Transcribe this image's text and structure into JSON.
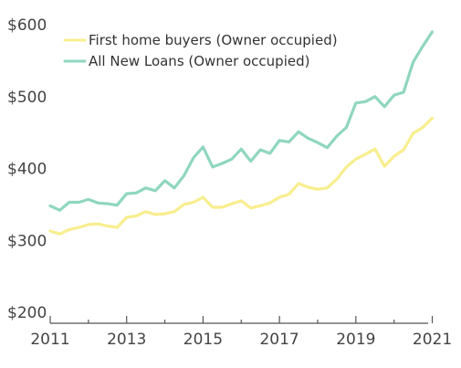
{
  "chart_data": {
    "type": "line",
    "title": "",
    "xlabel": "",
    "ylabel": "",
    "xlim": [
      2011,
      2021.25
    ],
    "ylim": [
      200,
      600
    ],
    "x_ticks": [
      2011,
      2013,
      2015,
      2017,
      2019,
      2021
    ],
    "x_tick_labels": [
      "2011",
      "2013",
      "2015",
      "2017",
      "2019",
      "2021"
    ],
    "y_ticks": [
      200,
      300,
      400,
      500,
      600
    ],
    "y_tick_labels": [
      "$200",
      "$300",
      "$400",
      "$500",
      "$600"
    ],
    "grid": false,
    "legend_position": "top-left",
    "x": [
      2011.0,
      2011.25,
      2011.5,
      2011.75,
      2012.0,
      2012.25,
      2012.5,
      2012.75,
      2013.0,
      2013.25,
      2013.5,
      2013.75,
      2014.0,
      2014.25,
      2014.5,
      2014.75,
      2015.0,
      2015.25,
      2015.5,
      2015.75,
      2016.0,
      2016.25,
      2016.5,
      2016.75,
      2017.0,
      2017.25,
      2017.5,
      2017.75,
      2018.0,
      2018.25,
      2018.5,
      2018.75,
      2019.0,
      2019.25,
      2019.5,
      2019.75,
      2020.0,
      2020.25,
      2020.5,
      2020.75,
      2021.0
    ],
    "series": [
      {
        "name": "First home buyers (Owner occupied)",
        "color": "#f8ee8e",
        "values": [
          313,
          309,
          315,
          318,
          322,
          323,
          320,
          318,
          332,
          334,
          340,
          336,
          337,
          340,
          350,
          353,
          360,
          346,
          346,
          351,
          355,
          345,
          348,
          352,
          360,
          364,
          379,
          374,
          371,
          373,
          385,
          402,
          413,
          420,
          427,
          403,
          417,
          426,
          449,
          457,
          470
        ]
      },
      {
        "name": "All New Loans (Owner occupied)",
        "color": "#8fd6c0",
        "values": [
          348,
          342,
          353,
          353,
          357,
          352,
          351,
          349,
          365,
          366,
          373,
          369,
          383,
          373,
          390,
          415,
          430,
          402,
          407,
          413,
          427,
          410,
          426,
          421,
          439,
          437,
          451,
          442,
          436,
          429,
          445,
          457,
          491,
          493,
          500,
          486,
          502,
          506,
          548,
          570,
          590
        ]
      }
    ]
  }
}
